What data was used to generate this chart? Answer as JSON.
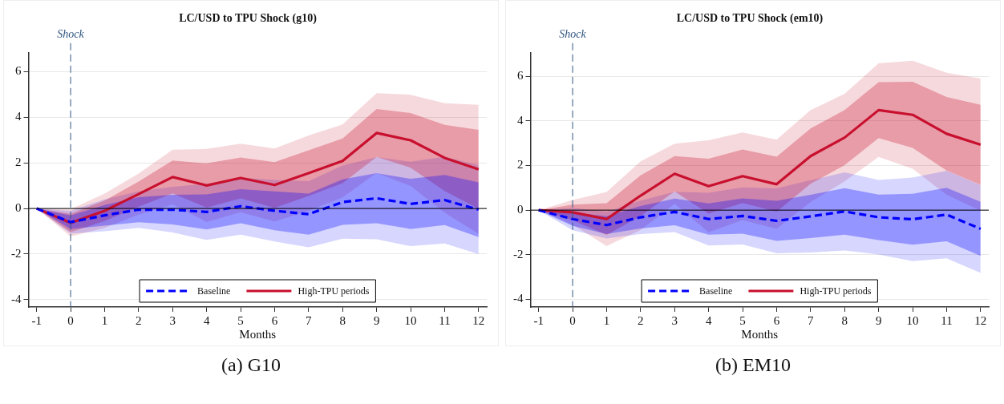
{
  "chart_data": [
    {
      "type": "line",
      "title": "LC/USD to TPU Shock (g10)",
      "xlabel": "Months",
      "x": [
        -1,
        0,
        1,
        2,
        3,
        4,
        5,
        6,
        7,
        8,
        9,
        10,
        11,
        12
      ],
      "xlim": [
        -1.24,
        12.24
      ],
      "xticks": [
        -1,
        0,
        1,
        2,
        3,
        4,
        5,
        6,
        7,
        8,
        9,
        10,
        11,
        12
      ],
      "ylim": [
        -4.32,
        6.83
      ],
      "yticks": [
        -4,
        -2,
        0,
        2,
        4,
        6
      ],
      "grid": "y",
      "legend": "bottom",
      "series": [
        {
          "name": "Baseline",
          "color": "#0000ff",
          "line_style": "dashed",
          "values": [
            0,
            -0.6,
            -0.3,
            -0.05,
            -0.05,
            -0.15,
            0.1,
            -0.1,
            -0.25,
            0.28,
            0.45,
            0.2,
            0.37,
            -0.05
          ],
          "lower": [
            0,
            -0.9,
            -0.75,
            -0.6,
            -0.7,
            -0.92,
            -0.65,
            -0.95,
            -1.15,
            -0.72,
            -0.65,
            -0.9,
            -0.73,
            -1.25
          ],
          "upper": [
            0,
            -0.3,
            0.15,
            0.5,
            0.6,
            0.62,
            0.85,
            0.75,
            0.65,
            1.28,
            1.55,
            1.3,
            1.47,
            1.15
          ]
        },
        {
          "name": "High-TPU periods",
          "color": "#c8102e",
          "line_style": "solid",
          "values": [
            0,
            -0.63,
            -0.1,
            0.63,
            1.38,
            1.01,
            1.34,
            1.03,
            1.55,
            2.09,
            3.31,
            2.99,
            2.22,
            1.72
          ],
          "lower": [
            0,
            -1.03,
            -0.55,
            0.08,
            0.66,
            0.04,
            0.44,
            0.03,
            0.55,
            1.11,
            2.26,
            1.79,
            0.77,
            -0.01
          ],
          "upper": [
            0,
            -0.23,
            0.35,
            1.18,
            2.1,
            1.98,
            2.24,
            2.03,
            2.55,
            3.07,
            4.36,
            4.19,
            3.67,
            3.45
          ]
        },
        {
          "color": "#0000ff",
          "values": [
            null,
            null,
            null,
            null,
            null,
            null,
            null,
            null,
            null,
            null,
            null,
            null,
            null,
            null
          ],
          "lower": [
            0,
            -1.1,
            -1.0,
            -0.85,
            -1.05,
            -1.38,
            -1.15,
            -1.45,
            -1.7,
            -1.32,
            -1.35,
            -1.65,
            -1.53,
            -2.0
          ],
          "upper": [
            0,
            -0.1,
            0.4,
            0.75,
            0.95,
            1.08,
            1.35,
            1.25,
            1.2,
            1.88,
            2.25,
            2.05,
            2.27,
            1.9
          ]
        },
        {
          "color": "#c8102e",
          "values": [
            null,
            null,
            null,
            null,
            null,
            null,
            null,
            null,
            null,
            null,
            null,
            null,
            null,
            null
          ],
          "lower": [
            0,
            -1.23,
            -0.85,
            -0.27,
            0.18,
            -0.59,
            -0.16,
            -0.57,
            -0.1,
            0.49,
            1.56,
            0.99,
            -0.18,
            -1.11
          ],
          "upper": [
            0,
            -0.03,
            0.65,
            1.53,
            2.58,
            2.61,
            2.84,
            2.63,
            3.2,
            3.69,
            5.06,
            4.99,
            4.62,
            4.55
          ]
        }
      ],
      "ref_lines": [
        {
          "axis": "x",
          "value": 0,
          "label": "Shock",
          "color": "#2f5580",
          "line_style": "dashed"
        },
        {
          "axis": "y",
          "value": 0,
          "color": "#000000",
          "line_style": "solid"
        }
      ],
      "annotations": [
        "(a) G10"
      ]
    },
    {
      "type": "line",
      "title": "LC/USD to TPU Shock (em10)",
      "xlabel": "Months",
      "x": [
        -1,
        0,
        1,
        2,
        3,
        4,
        5,
        6,
        7,
        8,
        9,
        10,
        11,
        12
      ],
      "xlim": [
        -1.24,
        12.24
      ],
      "xticks": [
        -1,
        0,
        1,
        2,
        3,
        4,
        5,
        6,
        7,
        8,
        9,
        10,
        11,
        12
      ],
      "ylim": [
        -4.34,
        7.05
      ],
      "yticks": [
        -4,
        -2,
        0,
        2,
        4,
        6
      ],
      "grid": "y",
      "legend": "bottom",
      "series": [
        {
          "name": "Baseline",
          "color": "#0000ff",
          "line_style": "dashed",
          "values": [
            0,
            -0.4,
            -0.67,
            -0.32,
            -0.08,
            -0.4,
            -0.26,
            -0.48,
            -0.28,
            -0.06,
            -0.32,
            -0.41,
            -0.2,
            -0.84
          ],
          "lower": [
            0,
            -0.7,
            -1.07,
            -0.82,
            -0.68,
            -1.1,
            -1.05,
            -1.38,
            -1.25,
            -1.1,
            -1.34,
            -1.55,
            -1.4,
            -2.05
          ],
          "upper": [
            0,
            -0.1,
            -0.27,
            0.18,
            0.52,
            0.3,
            0.53,
            0.42,
            0.69,
            0.98,
            0.7,
            0.73,
            1.0,
            0.37
          ]
        },
        {
          "name": "High-TPU periods",
          "color": "#c8102e",
          "line_style": "solid",
          "values": [
            0,
            -0.1,
            -0.4,
            0.65,
            1.63,
            1.07,
            1.52,
            1.16,
            2.42,
            3.25,
            4.48,
            4.27,
            3.42,
            2.93
          ],
          "lower": [
            0,
            -0.45,
            -1.11,
            -0.26,
            0.84,
            -0.16,
            0.32,
            -0.07,
            1.18,
            2.02,
            3.23,
            2.79,
            1.77,
            1.14
          ],
          "upper": [
            0,
            0.25,
            0.31,
            1.56,
            2.42,
            2.3,
            2.72,
            2.39,
            3.66,
            4.48,
            5.73,
            5.75,
            5.07,
            4.72
          ]
        },
        {
          "color": "#0000ff",
          "values": [
            null,
            null,
            null,
            null,
            null,
            null,
            null,
            null,
            null,
            null,
            null,
            null,
            null,
            null
          ],
          "lower": [
            0,
            -0.9,
            -1.27,
            -1.07,
            -0.98,
            -1.58,
            -1.54,
            -1.93,
            -1.9,
            -1.81,
            -1.99,
            -2.28,
            -2.16,
            -2.81
          ],
          "upper": [
            0,
            0.1,
            -0.07,
            0.43,
            0.82,
            0.78,
            1.02,
            0.97,
            1.34,
            1.69,
            1.35,
            1.46,
            1.76,
            1.13
          ]
        },
        {
          "color": "#c8102e",
          "values": [
            null,
            null,
            null,
            null,
            null,
            null,
            null,
            null,
            null,
            null,
            null,
            null,
            null,
            null
          ],
          "lower": [
            0,
            -0.65,
            -1.61,
            -0.89,
            0.28,
            -0.99,
            -0.44,
            -0.84,
            0.36,
            1.29,
            2.38,
            1.85,
            0.69,
            -0.03
          ],
          "upper": [
            0,
            0.45,
            0.81,
            2.19,
            2.98,
            3.13,
            3.48,
            3.16,
            4.48,
            5.21,
            6.58,
            6.69,
            6.15,
            5.89
          ]
        }
      ],
      "ref_lines": [
        {
          "axis": "x",
          "value": 0,
          "label": "Shock",
          "color": "#2f5580",
          "line_style": "dashed"
        },
        {
          "axis": "y",
          "value": 0,
          "color": "#000000",
          "line_style": "solid"
        }
      ],
      "annotations": [
        "(b) EM10"
      ]
    }
  ]
}
